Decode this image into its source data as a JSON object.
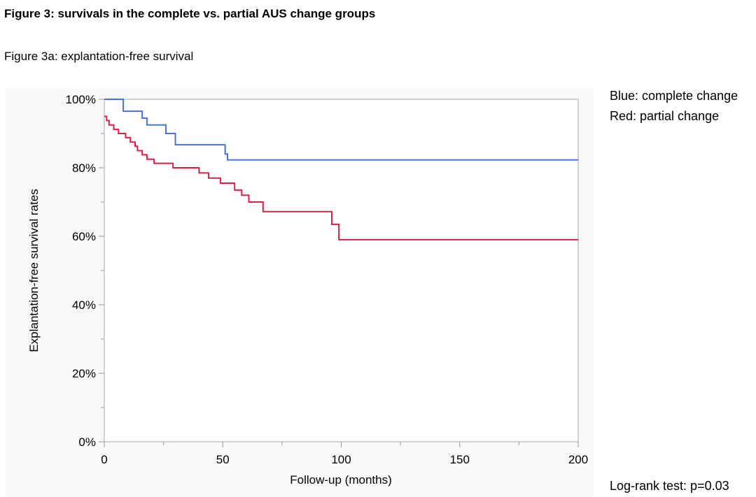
{
  "figure": {
    "title": "Figure 3: survivals in the complete vs. partial AUS change groups",
    "subtitle": "Figure 3a: explantation-free survival"
  },
  "legend": {
    "blue_label": "Blue: complete change",
    "red_label": "Red: partial change"
  },
  "annotation": {
    "logrank": "Log-rank test: p=0.03"
  },
  "colors": {
    "blue_series": "#4a6fe0",
    "red_series": "#dc1f45",
    "axis": "#999999",
    "panel_bg": "#f8f8f8",
    "plot_bg": "#ffffff"
  },
  "chart_data": {
    "type": "line",
    "step": true,
    "title": "",
    "xlabel": "Follow-up (months)",
    "ylabel": "Explantation-free survival rates",
    "xlim": [
      0,
      200
    ],
    "ylim": [
      0,
      100
    ],
    "x_ticks": [
      0,
      50,
      100,
      150,
      200
    ],
    "x_tick_labels": [
      "0",
      "50",
      "100",
      "150",
      "200"
    ],
    "y_ticks": [
      0,
      20,
      40,
      60,
      80,
      100
    ],
    "y_tick_labels": [
      "0%",
      "20%",
      "40%",
      "60%",
      "80%",
      "100%"
    ],
    "grid": false,
    "legend_placement": "right, outside plot",
    "series": [
      {
        "name": "Blue: complete change",
        "color_key": "blue_series",
        "x": [
          0,
          8,
          16,
          18,
          26,
          30,
          51,
          52,
          200
        ],
        "y": [
          100,
          96.5,
          94.5,
          92.5,
          90,
          86.7,
          84,
          82.3,
          82.3
        ]
      },
      {
        "name": "Red: partial change",
        "color_key": "red_series",
        "x": [
          0,
          1,
          2,
          4,
          6,
          9,
          11,
          13,
          14,
          16,
          18,
          21,
          29,
          40,
          44,
          49,
          55,
          58,
          61,
          67,
          96,
          99,
          200
        ],
        "y": [
          95,
          93.8,
          92.5,
          91.2,
          90,
          88.8,
          87.5,
          86.3,
          85,
          83.8,
          82.5,
          81.3,
          80,
          78.5,
          77,
          75.5,
          73.5,
          72,
          70,
          67.2,
          63.5,
          59,
          59
        ]
      }
    ]
  }
}
